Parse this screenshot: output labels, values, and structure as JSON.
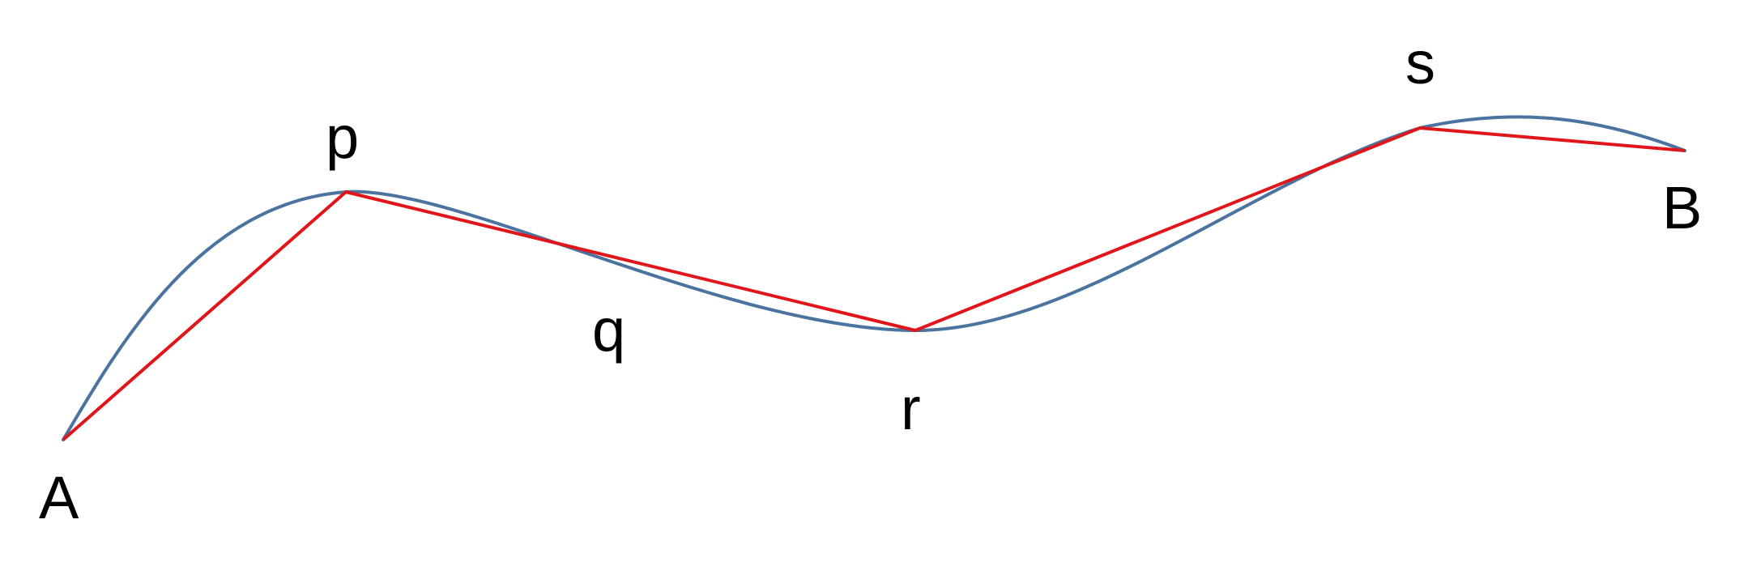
{
  "labels": {
    "start": "A",
    "p": "p",
    "q": "q",
    "r": "r",
    "s": "s",
    "end": "B"
  },
  "colors": {
    "curve": "#4a73a0",
    "polyline": "#e0161a",
    "text": "#000000"
  }
}
